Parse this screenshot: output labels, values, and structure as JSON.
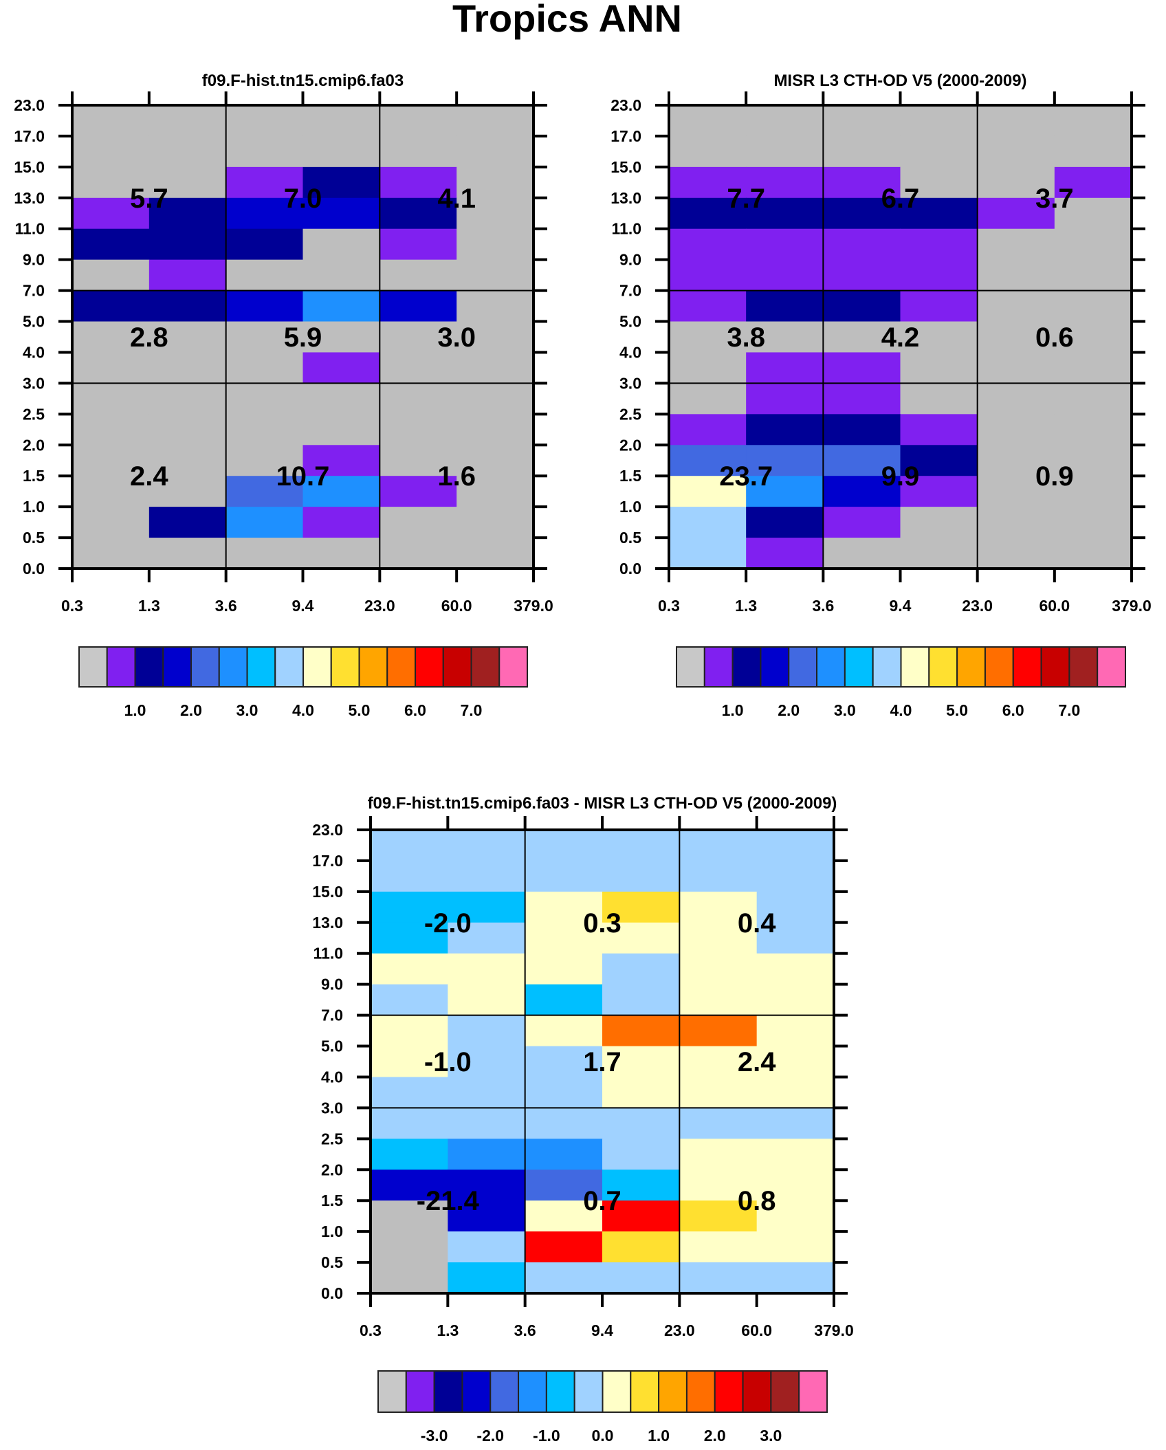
{
  "title": "Tropics ANN",
  "palette": [
    "#BEBEBE",
    "#8020F0",
    "#000096",
    "#0000CD",
    "#4169E1",
    "#1E90FF",
    "#00BFFF",
    "#A0D2FF",
    "#FFFFC8",
    "#FFE030",
    "#FFA500",
    "#FF6E00",
    "#FF0000",
    "#C80000",
    "#A02020",
    "#FF69B4"
  ],
  "chart_data": [
    {
      "type": "heatmap",
      "title": "f09.F-hist.tn15.cmip6.fa03",
      "x_tick_labels": [
        "0.3",
        "1.3",
        "3.6",
        "9.4",
        "23.0",
        "60.0",
        "379.0"
      ],
      "y_tick_labels": [
        "23.0",
        "17.0",
        "15.0",
        "13.0",
        "11.0",
        "9.0",
        "7.0",
        "5.0",
        "4.0",
        "3.0",
        "2.5",
        "2.0",
        "1.5",
        "1.0",
        "0.5",
        "0.0"
      ],
      "color_bins_top_to_bottom": [
        [
          0,
          0,
          0,
          0,
          0,
          0
        ],
        [
          0,
          0,
          0,
          0,
          0,
          0
        ],
        [
          0,
          0,
          1,
          2,
          1,
          0
        ],
        [
          1,
          2,
          3,
          3,
          2,
          0
        ],
        [
          2,
          2,
          2,
          0,
          1,
          0
        ],
        [
          0,
          1,
          0,
          0,
          0,
          0
        ],
        [
          2,
          2,
          3,
          5,
          3,
          0
        ],
        [
          0,
          0,
          0,
          0,
          0,
          0
        ],
        [
          0,
          0,
          0,
          1,
          0,
          0
        ],
        [
          0,
          0,
          0,
          0,
          0,
          0
        ],
        [
          0,
          0,
          0,
          0,
          0,
          0
        ],
        [
          0,
          0,
          0,
          1,
          0,
          0
        ],
        [
          0,
          0,
          4,
          5,
          1,
          0
        ],
        [
          0,
          2,
          5,
          1,
          0,
          0
        ],
        [
          0,
          0,
          0,
          0,
          0,
          0
        ]
      ],
      "block_values": [
        [
          "5.7",
          "7.0",
          "4.1"
        ],
        [
          "2.8",
          "5.9",
          "3.0"
        ],
        [
          "2.4",
          "10.7",
          "1.6"
        ]
      ],
      "colorbar_labels": [
        "1.0",
        "2.0",
        "3.0",
        "4.0",
        "5.0",
        "6.0",
        "7.0"
      ]
    },
    {
      "type": "heatmap",
      "title": "MISR L3 CTH-OD V5 (2000-2009)",
      "x_tick_labels": [
        "0.3",
        "1.3",
        "3.6",
        "9.4",
        "23.0",
        "60.0",
        "379.0"
      ],
      "y_tick_labels": [
        "23.0",
        "17.0",
        "15.0",
        "13.0",
        "11.0",
        "9.0",
        "7.0",
        "5.0",
        "4.0",
        "3.0",
        "2.5",
        "2.0",
        "1.5",
        "1.0",
        "0.5",
        "0.0"
      ],
      "color_bins_top_to_bottom": [
        [
          0,
          0,
          0,
          0,
          0,
          0
        ],
        [
          0,
          0,
          0,
          0,
          0,
          0
        ],
        [
          1,
          1,
          1,
          0,
          0,
          1
        ],
        [
          2,
          2,
          2,
          2,
          1,
          0
        ],
        [
          1,
          1,
          1,
          1,
          0,
          0
        ],
        [
          1,
          1,
          1,
          1,
          0,
          0
        ],
        [
          1,
          2,
          2,
          1,
          0,
          0
        ],
        [
          0,
          0,
          0,
          0,
          0,
          0
        ],
        [
          0,
          1,
          1,
          0,
          0,
          0
        ],
        [
          0,
          1,
          1,
          0,
          0,
          0
        ],
        [
          1,
          2,
          2,
          1,
          0,
          0
        ],
        [
          4,
          4,
          4,
          2,
          0,
          0
        ],
        [
          8,
          5,
          3,
          1,
          0,
          0
        ],
        [
          7,
          2,
          1,
          0,
          0,
          0
        ],
        [
          7,
          1,
          0,
          0,
          0,
          0
        ]
      ],
      "block_values": [
        [
          "7.7",
          "6.7",
          "3.7"
        ],
        [
          "3.8",
          "4.2",
          "0.6"
        ],
        [
          "23.7",
          "9.9",
          "0.9"
        ]
      ],
      "colorbar_labels": [
        "1.0",
        "2.0",
        "3.0",
        "4.0",
        "5.0",
        "6.0",
        "7.0"
      ]
    },
    {
      "type": "heatmap",
      "title": "f09.F-hist.tn15.cmip6.fa03 - MISR L3 CTH-OD V5 (2000-2009)",
      "x_tick_labels": [
        "0.3",
        "1.3",
        "3.6",
        "9.4",
        "23.0",
        "60.0",
        "379.0"
      ],
      "y_tick_labels": [
        "23.0",
        "17.0",
        "15.0",
        "13.0",
        "11.0",
        "9.0",
        "7.0",
        "5.0",
        "4.0",
        "3.0",
        "2.5",
        "2.0",
        "1.5",
        "1.0",
        "0.5",
        "0.0"
      ],
      "color_bins_top_to_bottom": [
        [
          7,
          7,
          7,
          7,
          7,
          7
        ],
        [
          7,
          7,
          7,
          7,
          7,
          7
        ],
        [
          6,
          6,
          8,
          9,
          8,
          7
        ],
        [
          6,
          7,
          8,
          8,
          8,
          7
        ],
        [
          8,
          8,
          8,
          7,
          8,
          8
        ],
        [
          7,
          8,
          6,
          7,
          8,
          8
        ],
        [
          8,
          7,
          8,
          11,
          11,
          8
        ],
        [
          8,
          7,
          7,
          8,
          8,
          8
        ],
        [
          7,
          7,
          7,
          8,
          8,
          8
        ],
        [
          7,
          7,
          7,
          7,
          7,
          7
        ],
        [
          6,
          5,
          5,
          7,
          8,
          8
        ],
        [
          3,
          3,
          4,
          6,
          8,
          8
        ],
        [
          0,
          3,
          8,
          12,
          9,
          8
        ],
        [
          0,
          7,
          12,
          9,
          8,
          8
        ],
        [
          0,
          6,
          7,
          7,
          7,
          7
        ]
      ],
      "block_values": [
        [
          "-2.0",
          "0.3",
          "0.4"
        ],
        [
          "-1.0",
          "1.7",
          "2.4"
        ],
        [
          "-21.4",
          "0.7",
          "0.8"
        ]
      ],
      "colorbar_labels": [
        "-3.0",
        "-2.0",
        "-1.0",
        "0.0",
        "1.0",
        "2.0",
        "3.0"
      ]
    }
  ]
}
